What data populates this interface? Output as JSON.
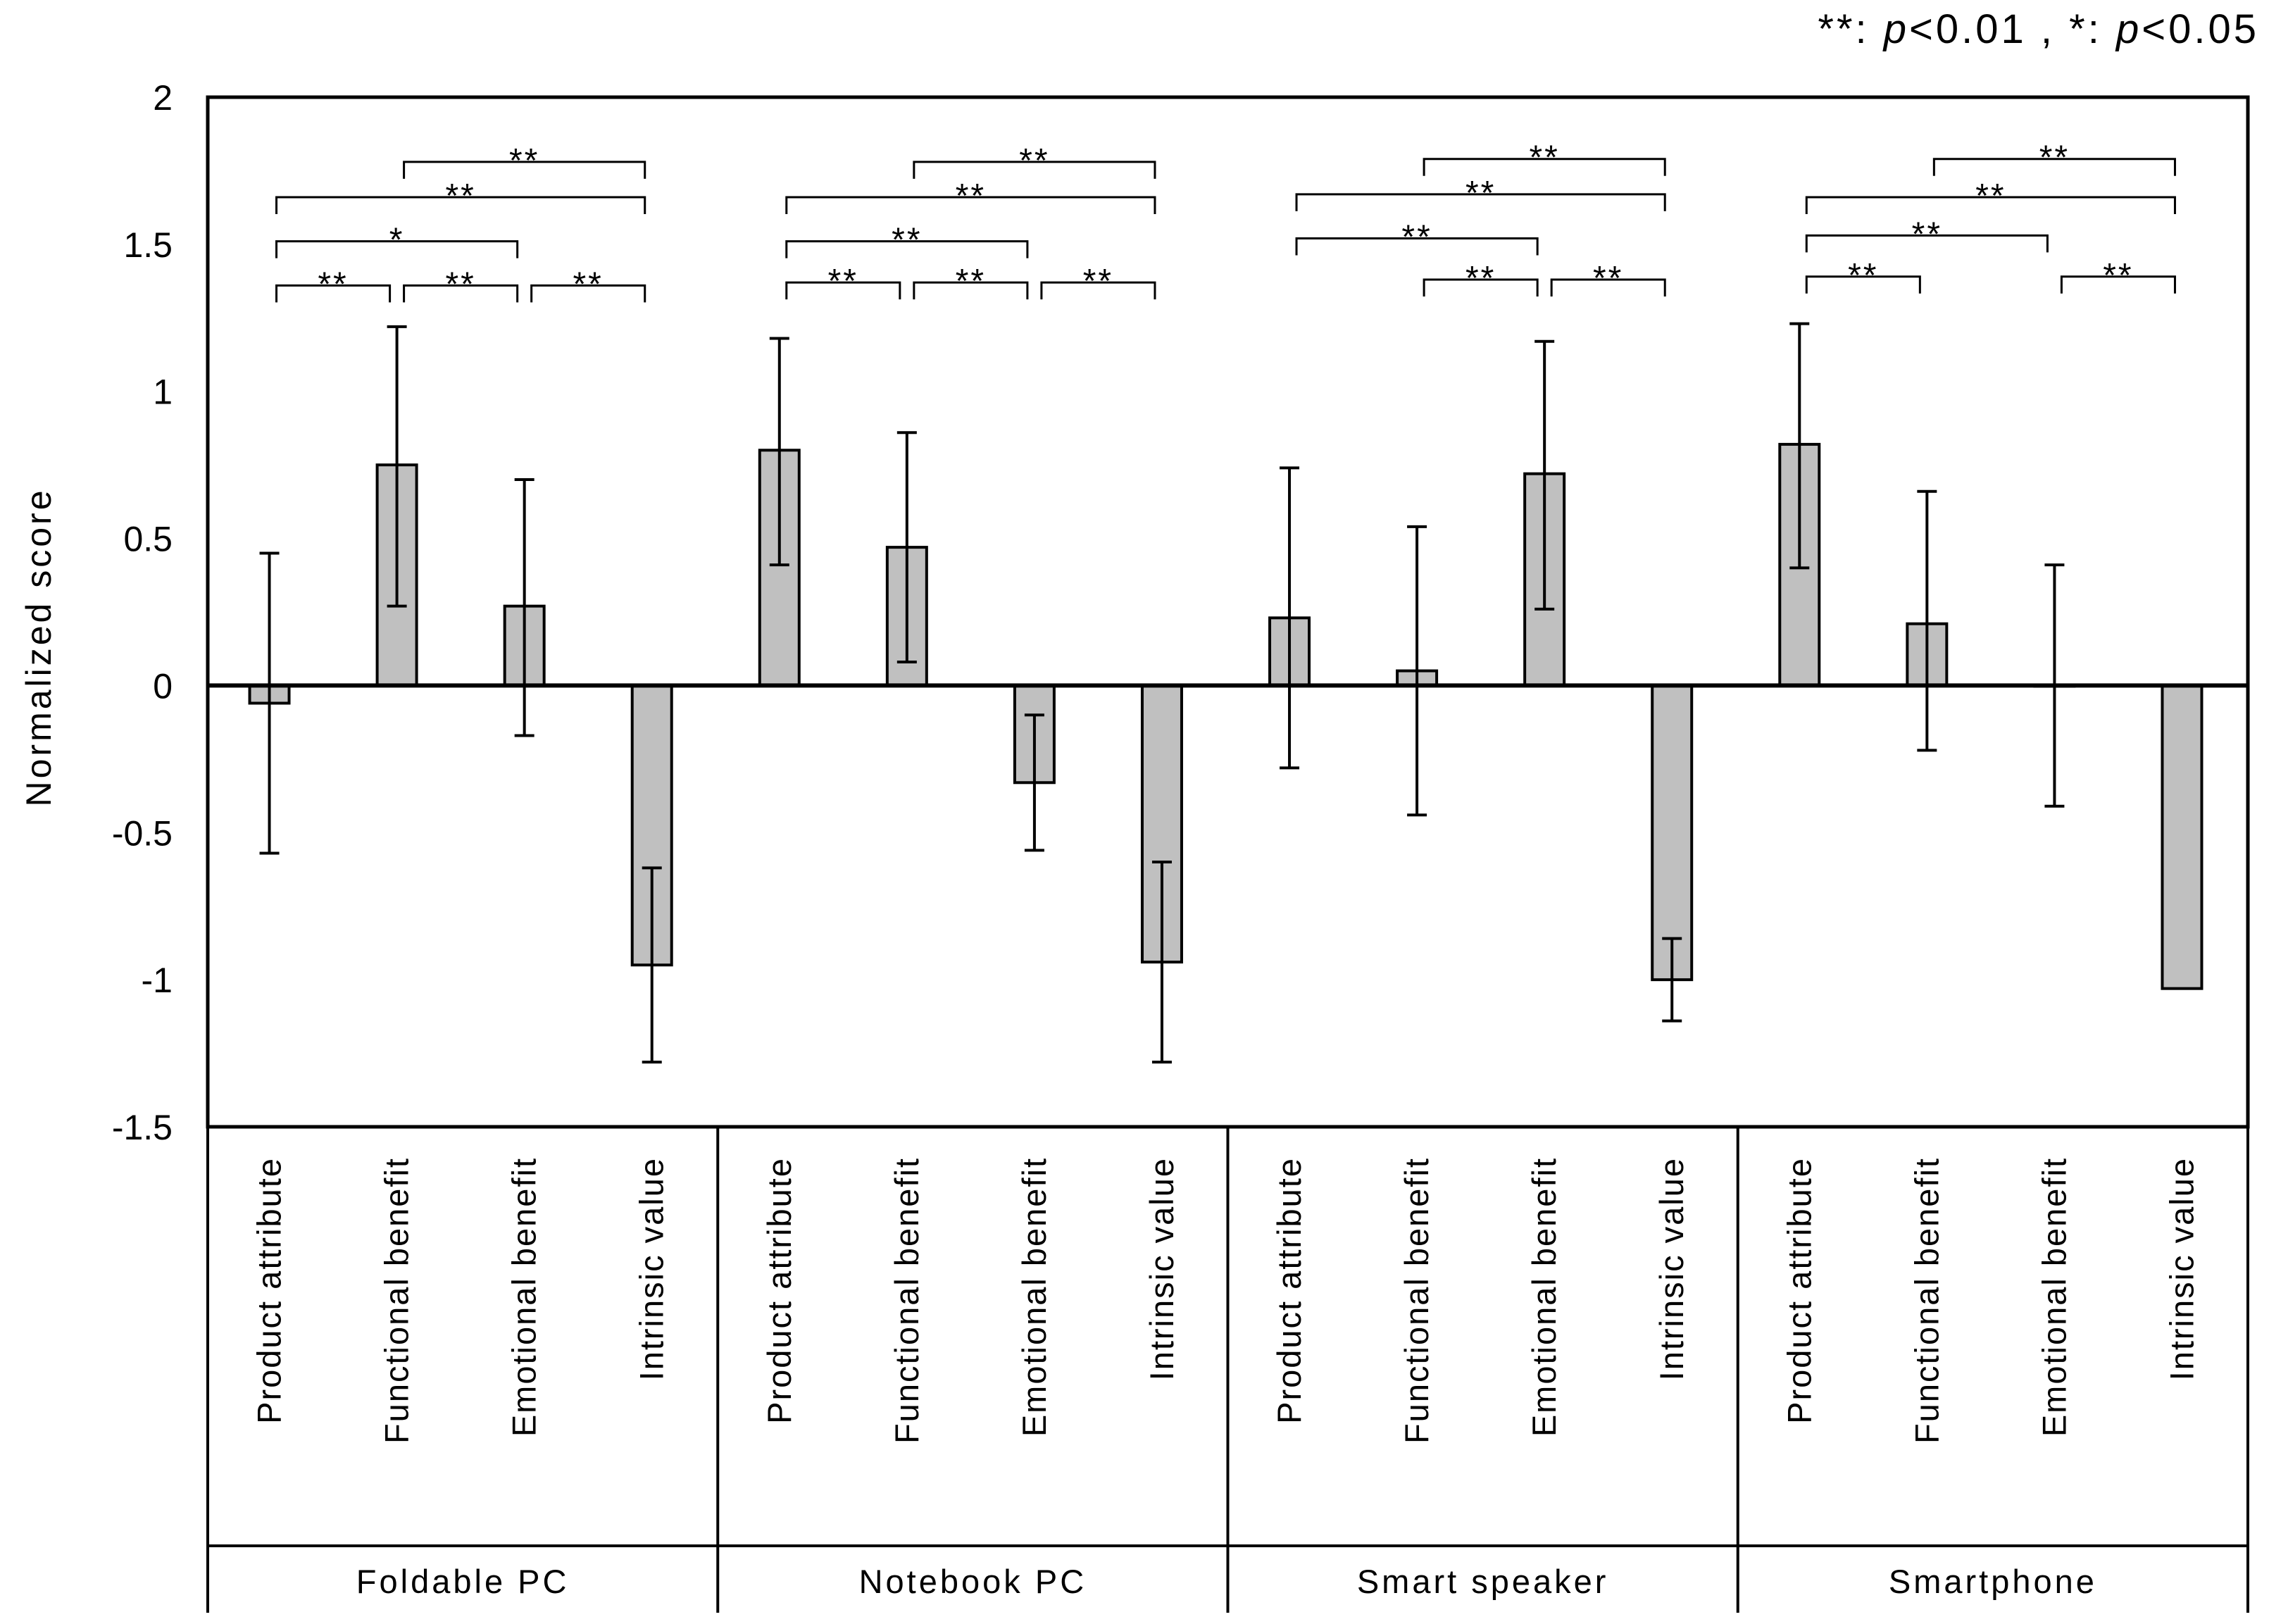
{
  "chart_data": {
    "type": "bar",
    "title": "",
    "ylabel": "Normalized score",
    "xlabel": "",
    "ylim": [
      -1.5,
      2
    ],
    "yticks": [
      {
        "v": 2,
        "label": "2"
      },
      {
        "v": 1.5,
        "label": "1.5"
      },
      {
        "v": 1,
        "label": "1"
      },
      {
        "v": 0.5,
        "label": "0.5"
      },
      {
        "v": 0,
        "label": "0"
      },
      {
        "v": -0.5,
        "label": "-0.5"
      },
      {
        "v": -1,
        "label": "-1"
      },
      {
        "v": -1.5,
        "label": "-1.5"
      }
    ],
    "legend": {
      "double": "**",
      "double_p": "p",
      "double_val": "<0.01 ,",
      "single": "*",
      "single_p": "p",
      "single_val": "<0.05"
    },
    "categories": [
      "Product attribute",
      "Functional benefit",
      "Emotional benefit",
      "Intrinsic value"
    ],
    "groups": [
      {
        "name": "Foldable PC",
        "values": [
          -0.06,
          0.75,
          0.27,
          -0.95
        ],
        "err_low": [
          -0.57,
          0.27,
          -0.17,
          -1.28
        ],
        "err_high": [
          0.45,
          1.22,
          0.7,
          -0.62
        ],
        "sig": [
          {
            "from": 1,
            "to": 3,
            "label": "**",
            "level": 1.78
          },
          {
            "from": 0,
            "to": 3,
            "label": "**",
            "level": 1.66
          },
          {
            "from": 0,
            "to": 2,
            "label": "*",
            "level": 1.51
          },
          {
            "from": 0,
            "to": 1,
            "label": "**",
            "level": 1.36
          },
          {
            "from": 1,
            "to": 2,
            "label": "**",
            "level": 1.36
          },
          {
            "from": 2,
            "to": 3,
            "label": "**",
            "level": 1.36
          }
        ]
      },
      {
        "name": "Notebook PC",
        "values": [
          0.8,
          0.47,
          -0.33,
          -0.94
        ],
        "err_low": [
          0.41,
          0.08,
          -0.56,
          -1.28
        ],
        "err_high": [
          1.18,
          0.86,
          -0.1,
          -0.6
        ],
        "sig": [
          {
            "from": 1,
            "to": 3,
            "label": "**",
            "level": 1.78
          },
          {
            "from": 0,
            "to": 3,
            "label": "**",
            "level": 1.66
          },
          {
            "from": 0,
            "to": 2,
            "label": "**",
            "level": 1.51
          },
          {
            "from": 0,
            "to": 1,
            "label": "**",
            "level": 1.37
          },
          {
            "from": 1,
            "to": 2,
            "label": "**",
            "level": 1.37
          },
          {
            "from": 2,
            "to": 3,
            "label": "**",
            "level": 1.37
          }
        ]
      },
      {
        "name": "Smart speaker",
        "values": [
          0.23,
          0.05,
          0.72,
          -1.0
        ],
        "err_low": [
          -0.28,
          -0.44,
          0.26,
          -1.14
        ],
        "err_high": [
          0.74,
          0.54,
          1.17,
          -0.86
        ],
        "sig": [
          {
            "from": 1,
            "to": 3,
            "label": "**",
            "level": 1.79
          },
          {
            "from": 0,
            "to": 3,
            "label": "**",
            "level": 1.67
          },
          {
            "from": 0,
            "to": 2,
            "label": "**",
            "level": 1.52
          },
          {
            "from": 1,
            "to": 2,
            "label": "**",
            "level": 1.38
          },
          {
            "from": 2,
            "to": 3,
            "label": "**",
            "level": 1.38
          }
        ]
      },
      {
        "name": "Smartphone",
        "values": [
          0.82,
          0.21,
          0.0,
          -1.03
        ],
        "err_low": [
          0.4,
          -0.22,
          -0.41,
          null
        ],
        "err_high": [
          1.23,
          0.66,
          0.41,
          null
        ],
        "sig": [
          {
            "from": 1,
            "to": 3,
            "label": "**",
            "level": 1.79
          },
          {
            "from": 0,
            "to": 3,
            "label": "**",
            "level": 1.66
          },
          {
            "from": 0,
            "to": 2,
            "label": "**",
            "level": 1.53
          },
          {
            "from": 0,
            "to": 1,
            "label": "**",
            "level": 1.39
          },
          {
            "from": 2,
            "to": 3,
            "label": "**",
            "level": 1.39
          }
        ]
      }
    ],
    "grid": false
  }
}
